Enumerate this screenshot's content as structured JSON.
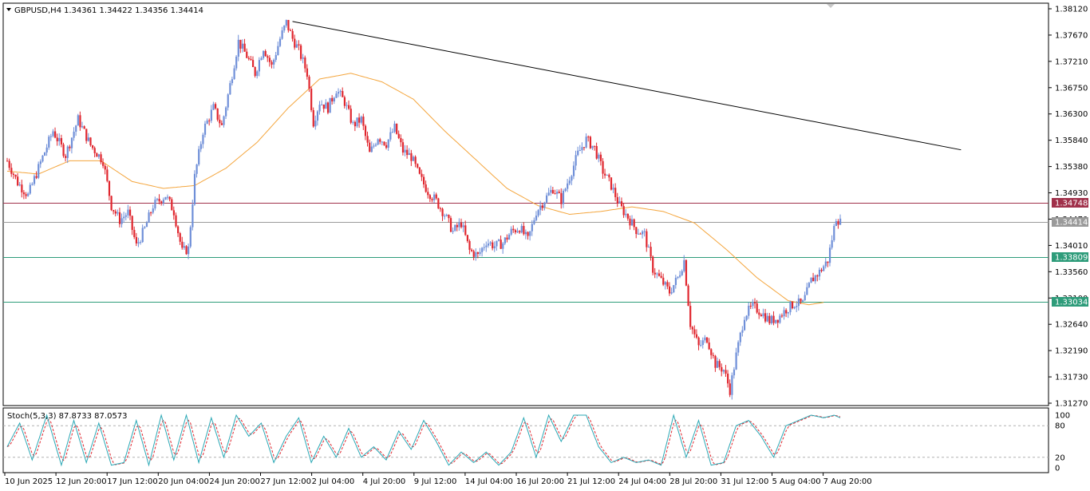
{
  "header": {
    "symbol": "GBPUSD,H4",
    "ohlc": "1.34361 1.34422 1.34356 1.34414"
  },
  "stoch_header": "Stoch(5,3,3) 87.8733 87.0573",
  "colors": {
    "bull": "#6f8fd8",
    "bear": "#e0262e",
    "ma": "#f4a53c",
    "trendline": "#000000",
    "resistance": "#a0304a",
    "support": "#2e9c7a",
    "current": "#9a9a9a",
    "stoch_main": "#2aa8b5",
    "stoch_signal": "#e0262e"
  },
  "chart_data": [
    {
      "type": "candlestick",
      "symbol": "GBPUSD",
      "timeframe": "H4",
      "x_tick_labels": [
        "10 Jun 2025",
        "12 Jun 20:00",
        "17 Jun 12:00",
        "20 Jun 04:00",
        "24 Jun 20:00",
        "27 Jun 12:00",
        "2 Jul 04:00",
        "4 Jul 20:00",
        "9 Jul 12:00",
        "14 Jul 04:00",
        "16 Jul 20:00",
        "21 Jul 12:00",
        "24 Jul 04:00",
        "28 Jul 20:00",
        "31 Jul 12:00",
        "5 Aug 04:00",
        "7 Aug 20:00"
      ],
      "y_tick_labels": [
        "1.38120",
        "1.37670",
        "1.37210",
        "1.36750",
        "1.36300",
        "1.35840",
        "1.35380",
        "1.34930",
        "1.34470",
        "1.34010",
        "1.33560",
        "1.33100",
        "1.32640",
        "1.32190",
        "1.31730",
        "1.31270"
      ],
      "ylim": [
        1.3127,
        1.3812
      ],
      "price_path": [
        [
          0,
          1.3548
        ],
        [
          5,
          1.351
        ],
        [
          10,
          1.3488
        ],
        [
          16,
          1.3545
        ],
        [
          22,
          1.36
        ],
        [
          28,
          1.3558
        ],
        [
          34,
          1.362
        ],
        [
          40,
          1.3575
        ],
        [
          46,
          1.3548
        ],
        [
          50,
          1.347
        ],
        [
          54,
          1.3445
        ],
        [
          58,
          1.3458
        ],
        [
          62,
          1.34
        ],
        [
          66,
          1.343
        ],
        [
          70,
          1.347
        ],
        [
          76,
          1.3488
        ],
        [
          80,
          1.346
        ],
        [
          84,
          1.339
        ],
        [
          87,
          1.3395
        ],
        [
          90,
          1.352
        ],
        [
          94,
          1.36
        ],
        [
          99,
          1.364
        ],
        [
          103,
          1.3608
        ],
        [
          107,
          1.368
        ],
        [
          111,
          1.3755
        ],
        [
          115,
          1.373
        ],
        [
          119,
          1.37
        ],
        [
          123,
          1.3745
        ],
        [
          127,
          1.3712
        ],
        [
          131,
          1.376
        ],
        [
          134,
          1.3788
        ],
        [
          137,
          1.376
        ],
        [
          140,
          1.374
        ],
        [
          144,
          1.37
        ],
        [
          147,
          1.3615
        ],
        [
          150,
          1.365
        ],
        [
          154,
          1.364
        ],
        [
          158,
          1.3672
        ],
        [
          162,
          1.365
        ],
        [
          166,
          1.361
        ],
        [
          170,
          1.362
        ],
        [
          174,
          1.356
        ],
        [
          178,
          1.359
        ],
        [
          182,
          1.3578
        ],
        [
          186,
          1.3605
        ],
        [
          190,
          1.3565
        ],
        [
          194,
          1.3555
        ],
        [
          198,
          1.352
        ],
        [
          202,
          1.3495
        ],
        [
          206,
          1.3478
        ],
        [
          210,
          1.3455
        ],
        [
          214,
          1.3425
        ],
        [
          218,
          1.344
        ],
        [
          222,
          1.3392
        ],
        [
          226,
          1.3383
        ],
        [
          230,
          1.3408
        ],
        [
          234,
          1.34
        ],
        [
          238,
          1.3405
        ],
        [
          242,
          1.3425
        ],
        [
          246,
          1.3432
        ],
        [
          250,
          1.341
        ],
        [
          254,
          1.346
        ],
        [
          258,
          1.348
        ],
        [
          262,
          1.35
        ],
        [
          266,
          1.348
        ],
        [
          270,
          1.352
        ],
        [
          274,
          1.356
        ],
        [
          278,
          1.3585
        ],
        [
          282,
          1.357
        ],
        [
          286,
          1.353
        ],
        [
          290,
          1.3505
        ],
        [
          294,
          1.347
        ],
        [
          298,
          1.345
        ],
        [
          302,
          1.3428
        ],
        [
          306,
          1.342
        ],
        [
          310,
          1.336
        ],
        [
          314,
          1.334
        ],
        [
          318,
          1.332
        ],
        [
          322,
          1.3345
        ],
        [
          325,
          1.3375
        ],
        [
          328,
          1.3265
        ],
        [
          332,
          1.3225
        ],
        [
          336,
          1.324
        ],
        [
          340,
          1.3195
        ],
        [
          344,
          1.3185
        ],
        [
          347,
          1.315
        ],
        [
          350,
          1.321
        ],
        [
          354,
          1.328
        ],
        [
          358,
          1.3295
        ],
        [
          362,
          1.3285
        ],
        [
          366,
          1.327
        ],
        [
          370,
          1.3275
        ],
        [
          374,
          1.329
        ],
        [
          378,
          1.33
        ],
        [
          382,
          1.33
        ],
        [
          386,
          1.334
        ],
        [
          390,
          1.3355
        ],
        [
          394,
          1.3375
        ],
        [
          398,
          1.345
        ],
        [
          400,
          1.3441
        ]
      ],
      "moving_average": [
        [
          0,
          1.353
        ],
        [
          15,
          1.3525
        ],
        [
          30,
          1.3548
        ],
        [
          45,
          1.3548
        ],
        [
          60,
          1.3512
        ],
        [
          75,
          1.35
        ],
        [
          90,
          1.3505
        ],
        [
          105,
          1.3535
        ],
        [
          120,
          1.358
        ],
        [
          135,
          1.364
        ],
        [
          150,
          1.369
        ],
        [
          165,
          1.37
        ],
        [
          180,
          1.3685
        ],
        [
          195,
          1.3655
        ],
        [
          210,
          1.36
        ],
        [
          225,
          1.355
        ],
        [
          240,
          1.35
        ],
        [
          255,
          1.347
        ],
        [
          270,
          1.3455
        ],
        [
          285,
          1.346
        ],
        [
          300,
          1.3468
        ],
        [
          315,
          1.346
        ],
        [
          330,
          1.344
        ],
        [
          345,
          1.3395
        ],
        [
          360,
          1.3345
        ],
        [
          375,
          1.3305
        ],
        [
          385,
          1.3298
        ],
        [
          392,
          1.3302
        ]
      ],
      "trendline": [
        [
          137,
          1.379
        ],
        [
          458,
          1.3567
        ]
      ],
      "horizontal_lines": [
        {
          "price": 1.34748,
          "label": "1.34748",
          "color": "resistance"
        },
        {
          "price": 1.34414,
          "label": "1.34414",
          "color": "current"
        },
        {
          "price": 1.33809,
          "label": "1.33809",
          "color": "support"
        },
        {
          "price": 1.33034,
          "label": "1.33034",
          "color": "support"
        }
      ]
    },
    {
      "type": "line",
      "name": "Stoch(5,3,3)",
      "ylim": [
        0,
        100
      ],
      "y_tick_labels": [
        "100",
        "80",
        "20",
        "0"
      ],
      "levels": [
        80,
        20
      ],
      "main_anchors": [
        [
          0,
          40
        ],
        [
          6,
          85
        ],
        [
          12,
          15
        ],
        [
          19,
          100
        ],
        [
          26,
          5
        ],
        [
          32,
          90
        ],
        [
          38,
          10
        ],
        [
          44,
          85
        ],
        [
          50,
          5
        ],
        [
          56,
          10
        ],
        [
          62,
          90
        ],
        [
          68,
          5
        ],
        [
          74,
          100
        ],
        [
          80,
          15
        ],
        [
          86,
          100
        ],
        [
          92,
          10
        ],
        [
          98,
          95
        ],
        [
          104,
          20
        ],
        [
          110,
          100
        ],
        [
          116,
          60
        ],
        [
          122,
          85
        ],
        [
          128,
          10
        ],
        [
          134,
          60
        ],
        [
          140,
          95
        ],
        [
          146,
          10
        ],
        [
          152,
          60
        ],
        [
          158,
          20
        ],
        [
          164,
          75
        ],
        [
          170,
          20
        ],
        [
          176,
          40
        ],
        [
          182,
          15
        ],
        [
          188,
          70
        ],
        [
          194,
          35
        ],
        [
          200,
          90
        ],
        [
          206,
          50
        ],
        [
          212,
          5
        ],
        [
          218,
          30
        ],
        [
          224,
          10
        ],
        [
          230,
          30
        ],
        [
          236,
          5
        ],
        [
          242,
          30
        ],
        [
          248,
          95
        ],
        [
          254,
          20
        ],
        [
          260,
          100
        ],
        [
          266,
          50
        ],
        [
          272,
          100
        ],
        [
          278,
          100
        ],
        [
          284,
          40
        ],
        [
          290,
          10
        ],
        [
          296,
          20
        ],
        [
          302,
          10
        ],
        [
          308,
          15
        ],
        [
          314,
          5
        ],
        [
          320,
          100
        ],
        [
          326,
          20
        ],
        [
          332,
          90
        ],
        [
          338,
          5
        ],
        [
          344,
          10
        ],
        [
          350,
          80
        ],
        [
          356,
          90
        ],
        [
          362,
          60
        ],
        [
          368,
          20
        ],
        [
          374,
          80
        ],
        [
          380,
          90
        ],
        [
          386,
          100
        ],
        [
          392,
          95
        ],
        [
          397,
          100
        ],
        [
          400,
          95
        ]
      ]
    }
  ]
}
